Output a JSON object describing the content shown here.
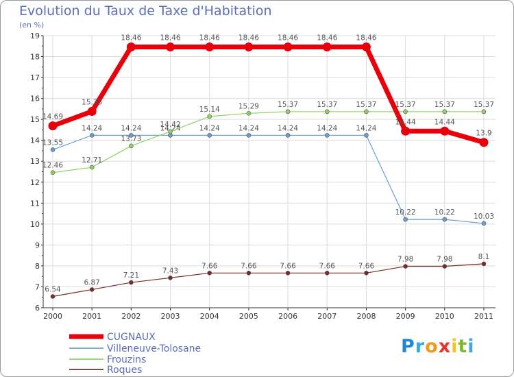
{
  "title": "Evolution du Taux de Taxe d'Habitation",
  "unit_label": "(en %)",
  "logo": {
    "letters": [
      "P",
      "r",
      "o",
      "x",
      "i",
      "t",
      "i"
    ],
    "colors": [
      "#1e88d8",
      "#2bb0e0",
      "#f29a1e",
      "#e8332e",
      "#f3c51d",
      "#7dbb2c",
      "#45a6e6"
    ]
  },
  "chart_data": {
    "type": "line",
    "title": "Evolution du Taux de Taxe d'Habitation",
    "ylabel": "(en %)",
    "xlabel": "",
    "ylim": [
      6,
      19
    ],
    "yticks": [
      6,
      7,
      8,
      9,
      10,
      11,
      12,
      13,
      14,
      15,
      16,
      17,
      18,
      19
    ],
    "categories": [
      "2000",
      "2001",
      "2002",
      "2003",
      "2004",
      "2005",
      "2006",
      "2007",
      "2008",
      "2009",
      "2010",
      "2011"
    ],
    "grid": true,
    "legend_position": "bottom-left",
    "series": [
      {
        "name": "CUGNAUX",
        "color": "#e8000a",
        "bold": true,
        "values": [
          14.69,
          15.38,
          18.46,
          18.46,
          18.46,
          18.46,
          18.46,
          18.46,
          18.46,
          14.44,
          14.44,
          13.9
        ],
        "labels": [
          "14.69",
          "15.38",
          "18.46",
          "18.46",
          "18.46",
          "18.46",
          "18.46",
          "18.46",
          "18.46",
          "14.44",
          "14.44",
          "13.9"
        ]
      },
      {
        "name": "Villeneuve-Tolosane",
        "color": "#6a9fd0",
        "values": [
          13.55,
          14.24,
          14.24,
          14.24,
          14.24,
          14.24,
          14.24,
          14.24,
          14.24,
          10.22,
          10.22,
          10.03
        ],
        "labels": [
          "13.55",
          "14.24",
          "14.24",
          "14.24",
          "14.24",
          "14.24",
          "14.24",
          "14.24",
          "14.24",
          "10.22",
          "10.22",
          "10.03"
        ]
      },
      {
        "name": "Frouzins",
        "color": "#8fd45e",
        "values": [
          12.46,
          12.71,
          13.73,
          14.42,
          15.14,
          15.29,
          15.37,
          15.37,
          15.37,
          15.37,
          15.37,
          15.37
        ],
        "labels": [
          "12.46",
          "12.71",
          "13.73",
          "14.42",
          "15.14",
          "15.29",
          "15.37",
          "15.37",
          "15.37",
          "15.37",
          "15.37",
          "15.37"
        ]
      },
      {
        "name": "Roques",
        "color": "#7a2a2a",
        "values": [
          6.54,
          6.87,
          7.21,
          7.43,
          7.66,
          7.66,
          7.66,
          7.66,
          7.66,
          7.98,
          7.98,
          8.1
        ],
        "labels": [
          "6.54",
          "6.87",
          "7.21",
          "7.43",
          "7.66",
          "7.66",
          "7.66",
          "7.66",
          "7.66",
          "7.98",
          "7.98",
          "8.1"
        ]
      }
    ]
  }
}
